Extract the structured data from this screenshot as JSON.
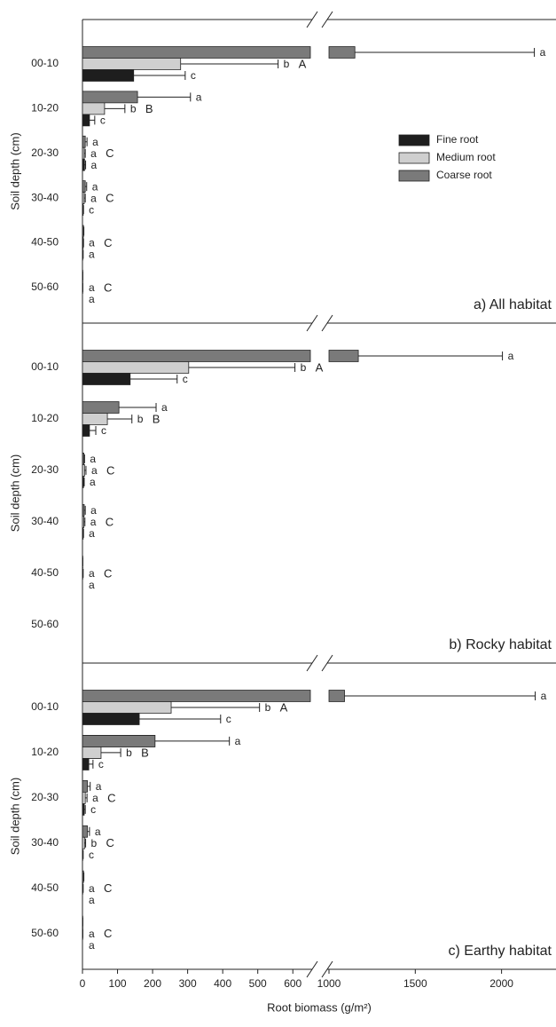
{
  "chart_data": {
    "type": "bar",
    "orientation": "horizontal",
    "xlabel": "Root biomass (g/m²)",
    "xlim": [
      0,
      2300
    ],
    "xbreak": [
      650,
      1000
    ],
    "xticks": [
      0,
      100,
      200,
      300,
      400,
      500,
      600,
      1000,
      1500,
      2000
    ],
    "legend": "upper right",
    "series": [
      {
        "name": "Fine root",
        "color": "#1e1e1e"
      },
      {
        "name": "Medium root",
        "color": "#cfcfcf"
      },
      {
        "name": "Coarse root",
        "color": "#7a7a7a"
      }
    ],
    "panels": [
      {
        "title": "a) All habitat",
        "ylabel": "Soil depth (cm)",
        "categories": [
          "00-10",
          "10-20",
          "20-30",
          "30-40",
          "40-50",
          "50-60"
        ],
        "group_letters": [
          "A",
          "B",
          "C",
          "C",
          "C",
          "C"
        ],
        "series": [
          {
            "values": [
              146,
              20,
              6,
              2,
              1,
              0
            ],
            "errors": [
              147,
              15,
              3,
              1,
              1,
              0
            ],
            "letters": [
              "c",
              "c",
              "a",
              "c",
              "a",
              "a"
            ]
          },
          {
            "values": [
              280,
              63,
              5,
              5,
              2,
              1
            ],
            "errors": [
              278,
              58,
              3,
              3,
              1,
              0
            ],
            "letters": [
              "b",
              "b",
              "a",
              "a",
              "a",
              "a"
            ]
          },
          {
            "values": [
              1150,
              157,
              8,
              8,
              3,
              1
            ],
            "errors": [
              1040,
              151,
              5,
              4,
              1,
              0
            ],
            "letters": [
              "a",
              "a",
              "a",
              "a",
              null,
              null
            ]
          }
        ]
      },
      {
        "title": "b) Rocky habitat",
        "ylabel": "Soil depth (cm)",
        "categories": [
          "00-10",
          "10-20",
          "20-30",
          "30-40",
          "40-50",
          "50-60"
        ],
        "group_letters": [
          "A",
          "B",
          "C",
          "C",
          "C",
          null
        ],
        "series": [
          {
            "values": [
              136,
              20,
              3,
              2,
              0,
              0
            ],
            "errors": [
              134,
              18,
              2,
              1,
              0,
              0
            ],
            "letters": [
              "c",
              "c",
              "a",
              "a",
              "a",
              null
            ]
          },
          {
            "values": [
              303,
              71,
              6,
              4,
              1,
              0
            ],
            "errors": [
              303,
              70,
              4,
              3,
              1,
              0
            ],
            "letters": [
              "b",
              "b",
              "a",
              "a",
              "a",
              null
            ]
          },
          {
            "values": [
              1170,
              104,
              4,
              5,
              1,
              0
            ],
            "errors": [
              835,
              106,
              2,
              3,
              0,
              0
            ],
            "letters": [
              "a",
              "a",
              "a",
              "a",
              null,
              null
            ]
          }
        ]
      },
      {
        "title": "c) Earthy habitat",
        "ylabel": "Soil depth (cm)",
        "categories": [
          "00-10",
          "10-20",
          "20-30",
          "30-40",
          "40-50",
          "50-60"
        ],
        "group_letters": [
          "A",
          "B",
          "C",
          "C",
          "C",
          "C"
        ],
        "series": [
          {
            "values": [
              162,
              18,
              5,
              1,
              0,
              0
            ],
            "errors": [
              232,
              12,
              3,
              1,
              0,
              0
            ],
            "letters": [
              "c",
              "c",
              "c",
              "c",
              "a",
              "a"
            ]
          },
          {
            "values": [
              253,
              53,
              8,
              6,
              1,
              1
            ],
            "errors": [
              252,
              56,
              5,
              3,
              1,
              0
            ],
            "letters": [
              "b",
              "b",
              "a",
              "b",
              "a",
              "a"
            ]
          },
          {
            "values": [
              1090,
              207,
              14,
              14,
              3,
              1
            ],
            "errors": [
              1105,
              212,
              8,
              6,
              1,
              0
            ],
            "letters": [
              "a",
              "a",
              "a",
              "a",
              null,
              null
            ]
          }
        ]
      }
    ]
  }
}
